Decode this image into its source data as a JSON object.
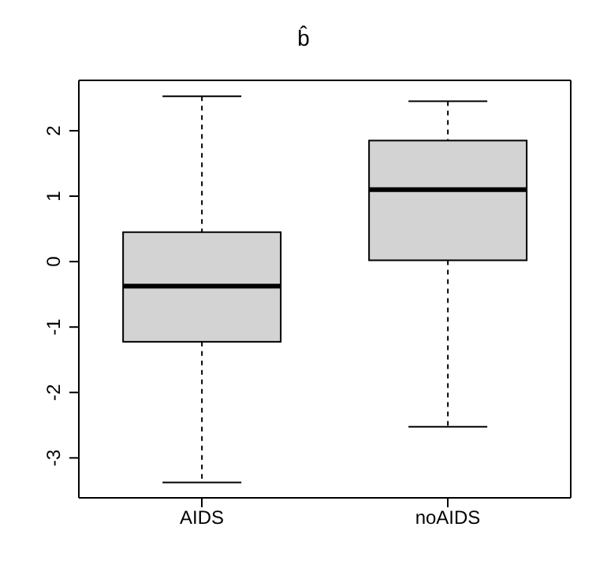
{
  "chart_data": {
    "type": "box",
    "title": "b̂",
    "categories": [
      "AIDS",
      "noAIDS"
    ],
    "color": "#d3d3d3",
    "boxes": [
      {
        "low": -3.375,
        "q1": -1.225,
        "median": -0.375,
        "q3": 0.45,
        "high": 2.525
      },
      {
        "low": -2.525,
        "q1": 0.02,
        "median": 1.1,
        "q3": 1.85,
        "high": 2.45
      }
    ],
    "ylim": [
      -3.61,
      2.77
    ],
    "yticks": [
      -3,
      -2,
      -1,
      0,
      1,
      2
    ],
    "grid": false
  }
}
